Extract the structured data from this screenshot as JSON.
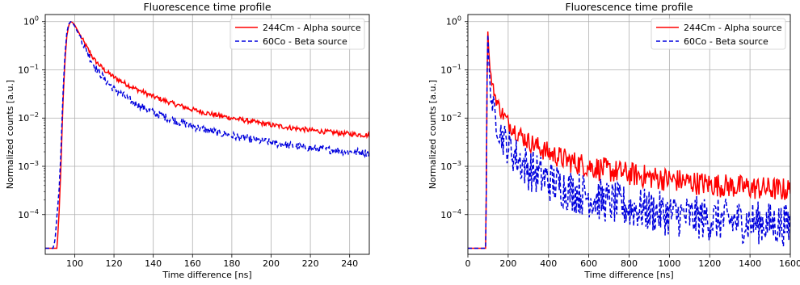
{
  "chart_data": [
    {
      "type": "line",
      "title": "Fluorescence time profile",
      "xlabel": "Time difference [ns]",
      "ylabel": "Normalized counts [a.u.]",
      "xlim": [
        85,
        250
      ],
      "ylim": [
        1.5e-05,
        1.4
      ],
      "yscale": "log",
      "grid": true,
      "legend_position": "top-right",
      "xticks": [
        100,
        120,
        140,
        160,
        180,
        200,
        220,
        240
      ],
      "xtick_labels": [
        "100",
        "120",
        "140",
        "160",
        "180",
        "200",
        "220",
        "240"
      ],
      "yticks": [
        0.0001,
        0.001,
        0.01,
        0.1,
        1
      ],
      "ytick_labels": [
        [
          "10",
          "−4"
        ],
        [
          "10",
          "−3"
        ],
        [
          "10",
          "−2"
        ],
        [
          "10",
          "−1"
        ],
        [
          "10",
          "0"
        ]
      ],
      "series": [
        {
          "name": "244Cm - Alpha source",
          "color": "#ff0000",
          "dash": "solid",
          "noise": 0.05,
          "x": [
            85,
            91,
            92,
            93,
            94,
            95,
            96,
            97,
            98,
            99,
            100,
            102,
            104,
            106,
            108,
            110,
            115,
            120,
            130,
            140,
            150,
            160,
            170,
            180,
            190,
            200,
            210,
            220,
            230,
            240,
            250
          ],
          "y": [
            2e-05,
            2e-05,
            0.0001,
            0.001,
            0.02,
            0.15,
            0.5,
            0.85,
            1.0,
            0.95,
            0.85,
            0.6,
            0.42,
            0.3,
            0.22,
            0.16,
            0.1,
            0.07,
            0.042,
            0.028,
            0.02,
            0.015,
            0.012,
            0.01,
            0.0085,
            0.0072,
            0.0063,
            0.0056,
            0.0051,
            0.0047,
            0.0044
          ]
        },
        {
          "name": "60Co - Beta source",
          "color": "#0000dd",
          "dash": "dashed",
          "noise": 0.08,
          "x": [
            85,
            89,
            90,
            91,
            92,
            93,
            94,
            95,
            96,
            97,
            98,
            99,
            100,
            102,
            104,
            106,
            108,
            110,
            115,
            120,
            130,
            140,
            150,
            160,
            170,
            180,
            190,
            200,
            210,
            220,
            230,
            240,
            250
          ],
          "y": [
            2e-05,
            2e-05,
            3e-05,
            0.0001,
            0.0003,
            0.002,
            0.03,
            0.2,
            0.6,
            0.9,
            1.0,
            0.93,
            0.8,
            0.55,
            0.37,
            0.25,
            0.17,
            0.12,
            0.065,
            0.04,
            0.021,
            0.013,
            0.0092,
            0.0068,
            0.0053,
            0.0043,
            0.0036,
            0.0031,
            0.0027,
            0.0024,
            0.0022,
            0.002,
            0.0019
          ]
        }
      ]
    },
    {
      "type": "line",
      "title": "Fluorescence time profile",
      "xlabel": "Time difference [ns]",
      "ylabel": "Normalized counts [a.u.]",
      "xlim": [
        0,
        1600
      ],
      "ylim": [
        1.5e-05,
        1.4
      ],
      "yscale": "log",
      "grid": true,
      "legend_position": "top-right",
      "xticks": [
        0,
        200,
        400,
        600,
        800,
        1000,
        1200,
        1400,
        1600
      ],
      "xtick_labels": [
        "0",
        "200",
        "400",
        "600",
        "800",
        "1000",
        "1200",
        "1400",
        "1600"
      ],
      "yticks": [
        0.0001,
        0.001,
        0.01,
        0.1,
        1
      ],
      "ytick_labels": [
        [
          "10",
          "−4"
        ],
        [
          "10",
          "−3"
        ],
        [
          "10",
          "−2"
        ],
        [
          "10",
          "−1"
        ],
        [
          "10",
          "0"
        ]
      ],
      "series": [
        {
          "name": "244Cm - Alpha source",
          "color": "#ff0000",
          "dash": "solid",
          "noise": 0.25,
          "x": [
            0,
            88,
            92,
            95,
            97,
            100,
            105,
            110,
            120,
            140,
            160,
            200,
            250,
            300,
            400,
            500,
            600,
            700,
            800,
            900,
            1000,
            1100,
            1200,
            1300,
            1400,
            1500,
            1600
          ],
          "y": [
            2e-05,
            2e-05,
            0.0005,
            0.05,
            1.0,
            0.5,
            0.2,
            0.1,
            0.05,
            0.025,
            0.015,
            0.008,
            0.0048,
            0.0033,
            0.0019,
            0.0013,
            0.001,
            0.00082,
            0.0007,
            0.0006,
            0.00053,
            0.00047,
            0.00042,
            0.00039,
            0.00036,
            0.00034,
            0.00032
          ]
        },
        {
          "name": "60Co - Beta source",
          "color": "#0000dd",
          "dash": "dashed",
          "noise": 0.45,
          "x": [
            0,
            88,
            92,
            95,
            97,
            100,
            105,
            110,
            120,
            140,
            160,
            200,
            250,
            300,
            400,
            500,
            600,
            700,
            800,
            900,
            1000,
            1100,
            1200,
            1300,
            1400,
            1500,
            1600
          ],
          "y": [
            2e-05,
            2e-05,
            0.0005,
            0.05,
            1.0,
            0.4,
            0.12,
            0.05,
            0.02,
            0.009,
            0.005,
            0.0025,
            0.0014,
            0.0009,
            0.0005,
            0.00033,
            0.00024,
            0.00018,
            0.00014,
            0.00012,
            0.0001,
            9e-05,
            8e-05,
            7.5e-05,
            7e-05,
            6.5e-05,
            6e-05
          ]
        }
      ]
    }
  ]
}
